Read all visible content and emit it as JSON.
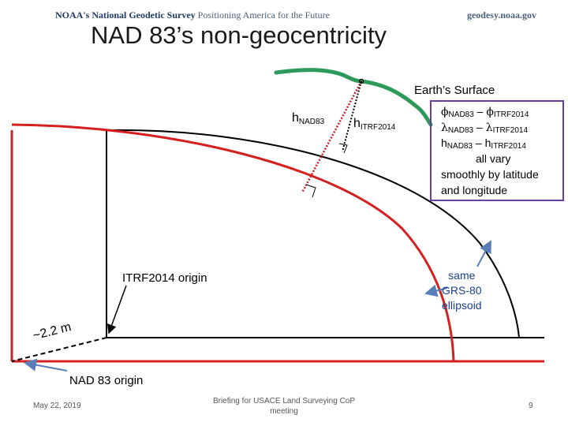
{
  "header": {
    "org_name": "NOAA's National Geodetic Survey",
    "tagline": "Positioning America for the Future",
    "website": "geodesy.noaa.gov"
  },
  "title": "NAD 83’s non-geocentricity",
  "labels": {
    "earth_surface": "Earth’s Surface",
    "h_prefix": "h",
    "nad83": "NAD83",
    "itrf2014": "ITRF2014",
    "itrf_origin": "ITRF2014 origin",
    "nad83_origin": "NAD 83 origin",
    "offset": "~2.2 m",
    "same_ellipsoid": [
      "same",
      "GRS-80",
      "ellipsoid"
    ]
  },
  "box": {
    "phi_symbol": "ϕ",
    "lambda_symbol": "λ",
    "h_symbol": "h",
    "minus": " – ",
    "sub_nad83": "NAD83",
    "sub_itrf2014": "ITRF2014",
    "vary_lines": [
      "all vary",
      "smoothly by latitude",
      "and longitude"
    ]
  },
  "colors": {
    "earth_surface": "#2e9a5a",
    "ellipsoid": "#d42020",
    "box_border": "#6a3fa0",
    "pointer_arrow": "#5a7fb8"
  },
  "footer": {
    "date": "May 22, 2019",
    "center": [
      "Briefing for USACE Land Surveying CoP",
      "meeting"
    ],
    "page": "9"
  }
}
